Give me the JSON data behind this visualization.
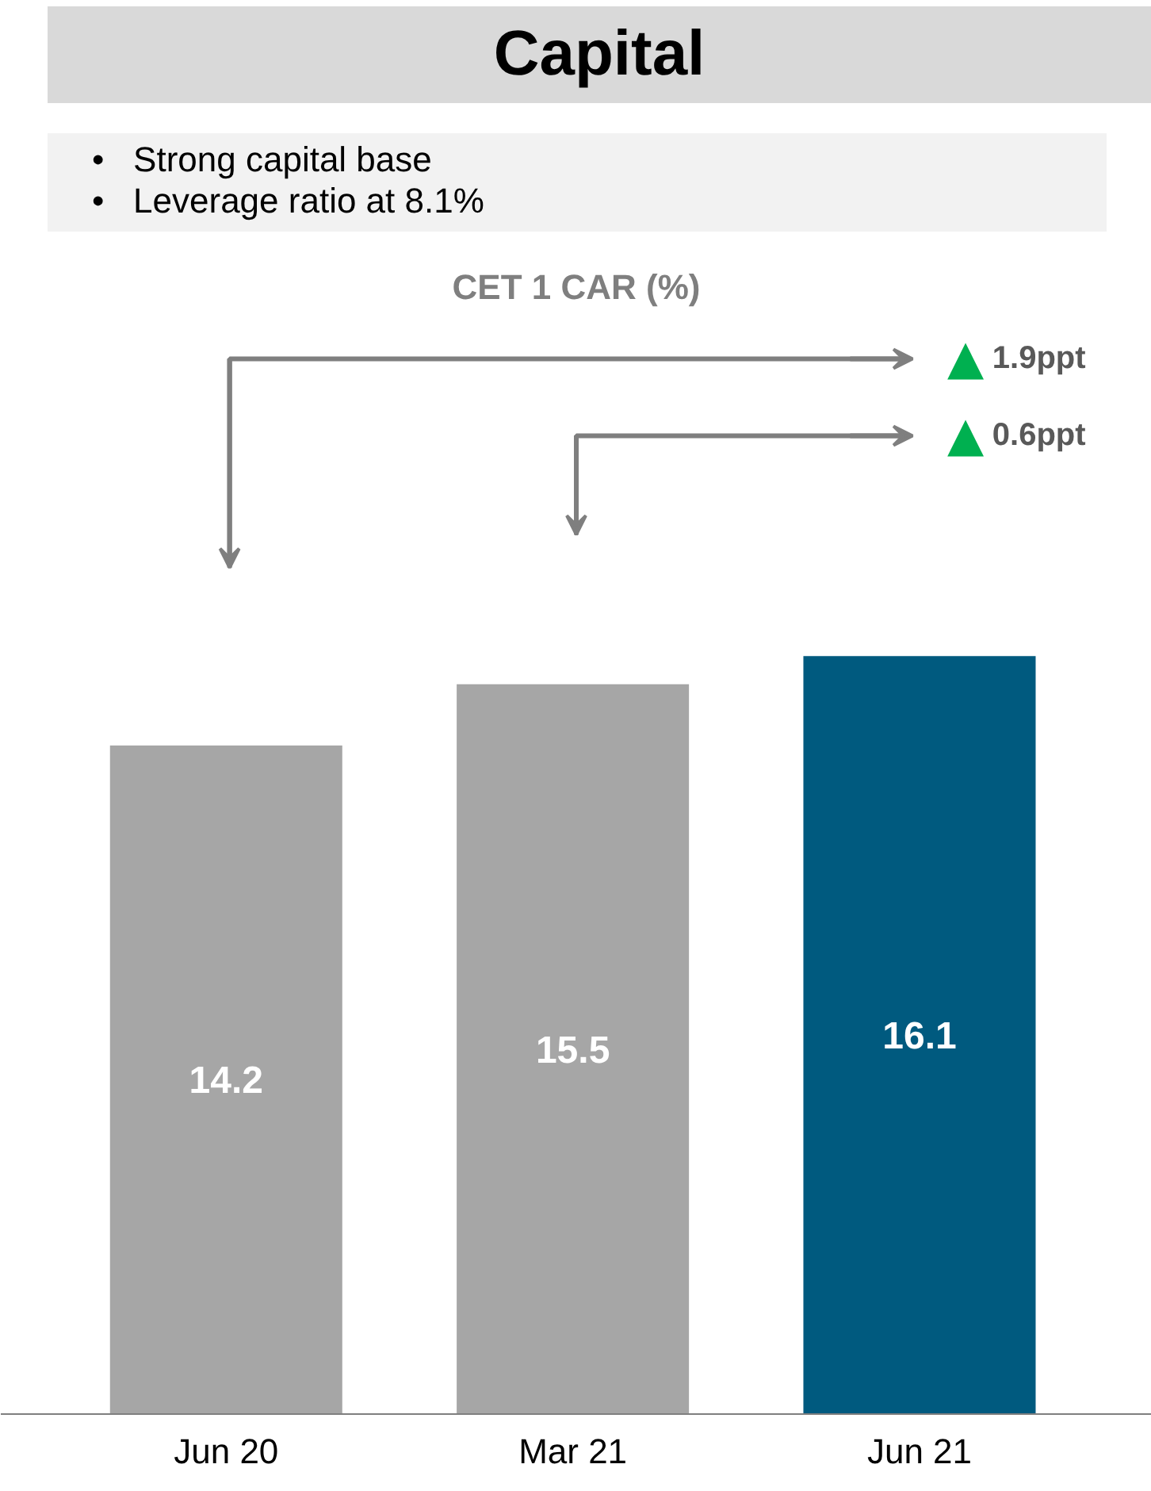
{
  "chart_data": {
    "type": "bar",
    "title": "Capital",
    "subtitle": "CET 1 CAR (%)",
    "categories": [
      "Jun 20",
      "Mar 21",
      "Jun 21"
    ],
    "values": [
      14.2,
      15.5,
      16.1
    ],
    "colors": [
      "#a6a6a6",
      "#a6a6a6",
      "#005a7f"
    ],
    "data_labels": true,
    "grid": false,
    "annotations": [
      "•   Strong capital base",
      "•   Leverage ratio at 8.1%",
      "▲ 1.9ppt",
      "▲ 0.6ppt"
    ]
  }
}
